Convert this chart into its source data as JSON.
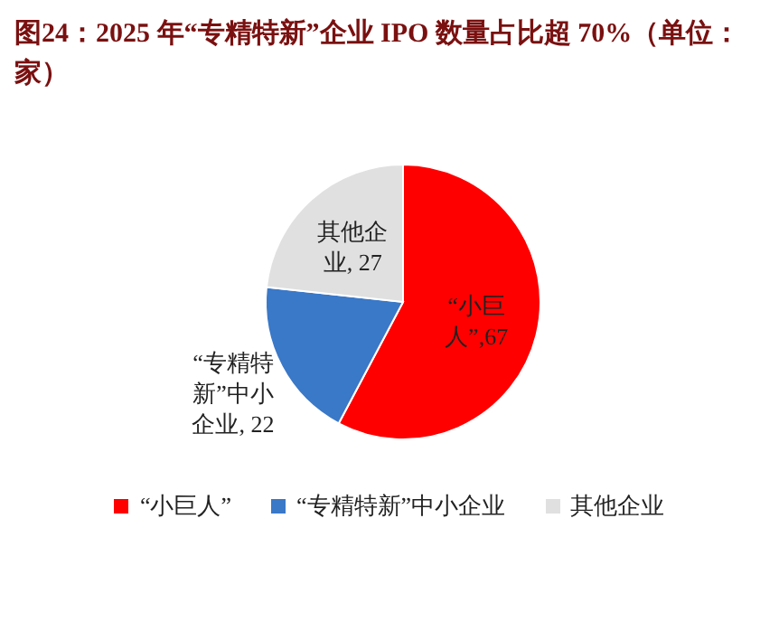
{
  "chart_data": {
    "type": "pie",
    "title": "图24：2025 年“专精特新”企业 IPO 数量占比超 70%（单位：家）",
    "categories": [
      "“小巨人”",
      "“专精特新”中小企业",
      "其他企业"
    ],
    "values": [
      67,
      22,
      27
    ],
    "value_labels": [
      "“小巨人”,67",
      "“专精特新”中小企业, 22",
      "其他企业, 27"
    ],
    "colors": [
      "#ff0000",
      "#3a78c8",
      "#e0e0e0"
    ],
    "legend": "bottom"
  }
}
